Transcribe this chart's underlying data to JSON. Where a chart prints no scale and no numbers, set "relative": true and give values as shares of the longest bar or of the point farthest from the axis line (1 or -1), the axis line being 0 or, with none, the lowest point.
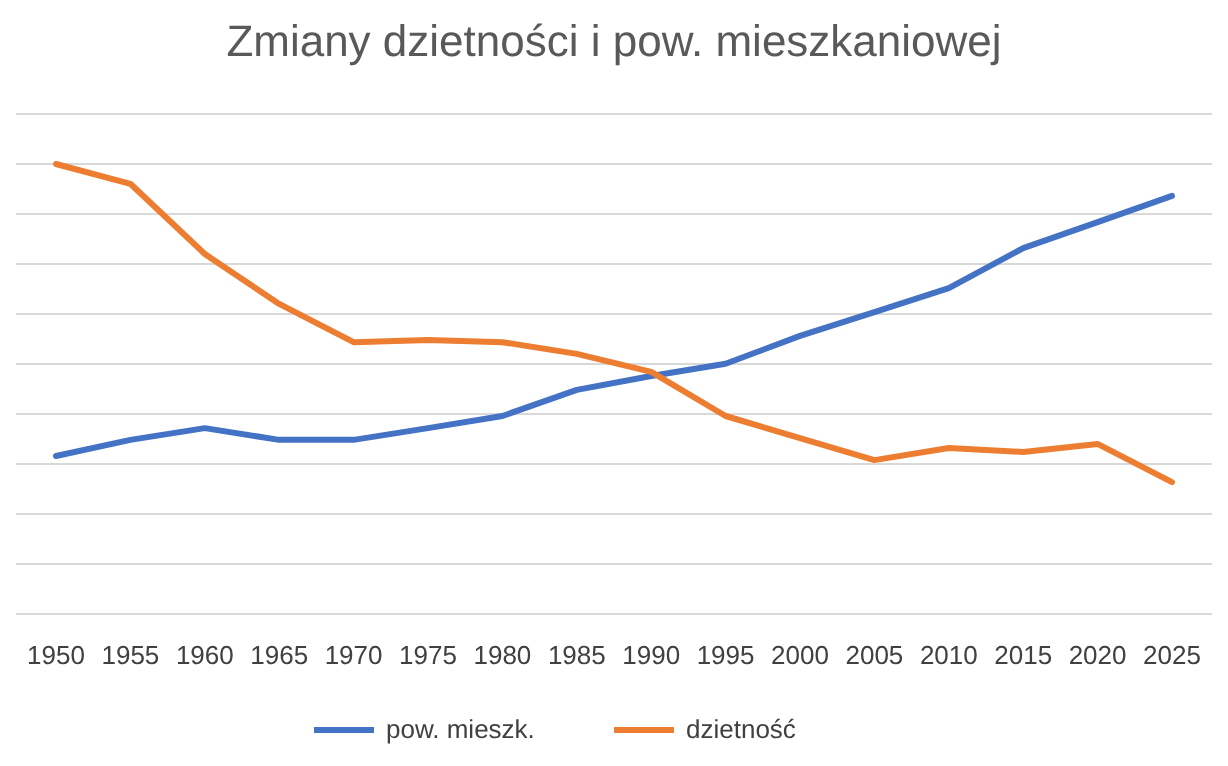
{
  "chart_data": {
    "type": "line",
    "title": "Zmiany dzietności i pow. mieszkaniowej",
    "relative": true,
    "grid": true,
    "legend": "bottom",
    "marker": "none",
    "line_style": "solid",
    "categories": [
      "1950",
      "1955",
      "1960",
      "1965",
      "1970",
      "1975",
      "1980",
      "1985",
      "1990",
      "1995",
      "2000",
      "2005",
      "2010",
      "2015",
      "2020",
      "2025"
    ],
    "series": [
      {
        "name": "pow. mieszk.",
        "color": "#4472c4",
        "values": [
          0.351,
          0.387,
          0.413,
          0.387,
          0.387,
          0.413,
          0.44,
          0.498,
          0.529,
          0.556,
          0.618,
          0.671,
          0.724,
          0.813,
          0.871,
          0.929
        ]
      },
      {
        "name": "dzietność",
        "color": "#ed7d31",
        "values": [
          1.0,
          0.956,
          0.8,
          0.689,
          0.604,
          0.609,
          0.604,
          0.578,
          0.538,
          0.44,
          0.391,
          0.342,
          0.369,
          0.36,
          0.378,
          0.293
        ]
      }
    ]
  }
}
